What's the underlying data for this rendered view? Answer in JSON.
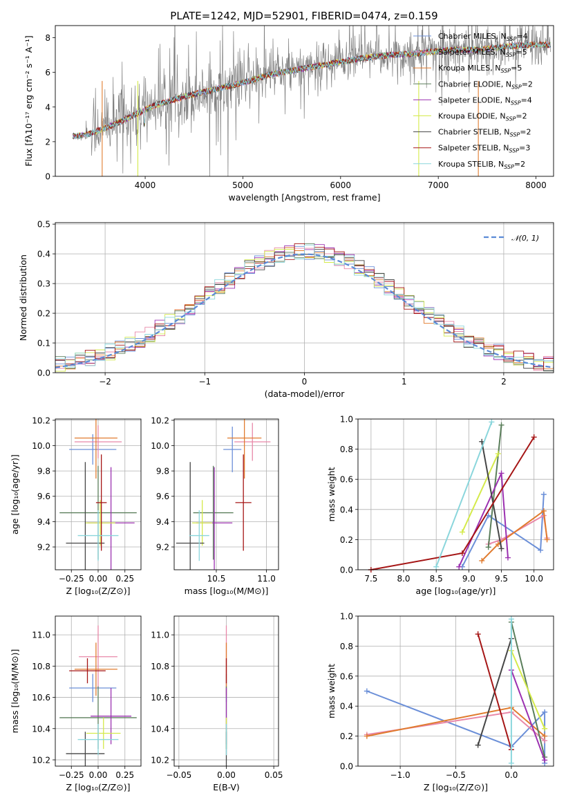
{
  "title": "PLATE=1242, MJD=52901, FIBERID=0474, z=0.159",
  "colors": {
    "Chabrier MILES": "#6b8fd8",
    "Salpeter MILES": "#e887a8",
    "Kroupa MILES": "#e07b2e",
    "Chabrier ELODIE": "#5a7e5a",
    "Salpeter ELODIE": "#9b30b0",
    "Kroupa ELODIE": "#d4ea4a",
    "Chabrier STELIB": "#454545",
    "Salpeter STELIB": "#a51515",
    "Kroupa STELIB": "#8ad6dc",
    "data": "#808080",
    "gaussian": "#5b8ad6",
    "grid": "#b0b0b0"
  },
  "chart_data": [
    {
      "id": "spectrum",
      "type": "line",
      "xlabel": "wavelength [Angstrom, rest frame]",
      "ylabel": "Flux [fλ10⁻¹⁷ erg cm⁻² s⁻¹ A⁻¹]",
      "xlim": [
        3080,
        8180
      ],
      "ylim": [
        0,
        8.7
      ],
      "xticks": [
        4000,
        5000,
        6000,
        7000,
        8000
      ],
      "yticks": [
        0,
        2,
        4,
        6,
        8
      ],
      "grid": false,
      "legend": "top-right",
      "legend_entries": [
        {
          "key": "Chabrier MILES",
          "label": "Chabrier MILES, N",
          "sub": "SSP",
          "tail": "=4"
        },
        {
          "key": "Salpeter MILES",
          "label": "Salpeter MILES, N",
          "sub": "SSP",
          "tail": "=5"
        },
        {
          "key": "Kroupa MILES",
          "label": "Kroupa MILES, N",
          "sub": "SSP",
          "tail": "=5"
        },
        {
          "key": "Chabrier ELODIE",
          "label": "Chabrier ELODIE, N",
          "sub": "SSP",
          "tail": "=2"
        },
        {
          "key": "Salpeter ELODIE",
          "label": "Salpeter ELODIE, N",
          "sub": "SSP",
          "tail": "=4"
        },
        {
          "key": "Kroupa ELODIE",
          "label": "Kroupa ELODIE, N",
          "sub": "SSP",
          "tail": "=2"
        },
        {
          "key": "Chabrier STELIB",
          "label": "Chabrier STELIB, N",
          "sub": "SSP",
          "tail": "=2"
        },
        {
          "key": "Salpeter STELIB",
          "label": "Salpeter STELIB, N",
          "sub": "SSP",
          "tail": "=3"
        },
        {
          "key": "Kroupa STELIB",
          "label": "Kroupa STELIB, N",
          "sub": "SSP",
          "tail": "=2"
        }
      ],
      "continuum": [
        [
          3250,
          2.3
        ],
        [
          3400,
          2.4
        ],
        [
          3600,
          2.8
        ],
        [
          3800,
          3.3
        ],
        [
          3950,
          3.7
        ],
        [
          4100,
          4.1
        ],
        [
          4400,
          4.6
        ],
        [
          4700,
          5.0
        ],
        [
          5000,
          5.4
        ],
        [
          5300,
          5.9
        ],
        [
          5600,
          6.2
        ],
        [
          5900,
          6.5
        ],
        [
          6200,
          6.8
        ],
        [
          6500,
          7.0
        ],
        [
          6800,
          7.1
        ],
        [
          7100,
          7.3
        ],
        [
          7400,
          7.3
        ],
        [
          7700,
          7.5
        ],
        [
          8000,
          7.6
        ],
        [
          8150,
          7.6
        ]
      ]
    },
    {
      "id": "residuals",
      "type": "histogram",
      "xlabel": "(data-model)/error",
      "ylabel": "Normed distribution",
      "xlim": [
        -2.5,
        2.5
      ],
      "ylim": [
        0,
        0.505
      ],
      "xticks": [
        -2,
        -1,
        0,
        1,
        2
      ],
      "yticks": [
        0,
        0.1,
        0.2,
        0.3,
        0.4,
        0.5
      ],
      "grid": true,
      "legend": "top-right",
      "gaussian_label": "𝒩(0, 1)",
      "bin_width": 0.1
    },
    {
      "id": "age-vs-Z",
      "type": "scatter",
      "xlabel": "Z [log₁₀(Z/Z⊙)]",
      "ylabel": "age  [log₁₀(age/yr)]",
      "xlim": [
        -0.4,
        0.4
      ],
      "ylim": [
        9.02,
        10.21
      ],
      "xticks": [
        -0.25,
        0.0,
        0.25
      ],
      "yticks": [
        9.2,
        9.4,
        9.6,
        9.8,
        10.0,
        10.2
      ],
      "grid": true,
      "points": [
        {
          "key": "Chabrier MILES",
          "x": -0.05,
          "xerr": 0.22,
          "y": 9.97,
          "yerr": 0.12
        },
        {
          "key": "Salpeter MILES",
          "x": 0.0,
          "xerr": 0.22,
          "y": 10.03,
          "yerr": 0.13
        },
        {
          "key": "Kroupa MILES",
          "x": -0.02,
          "xerr": 0.2,
          "y": 10.06,
          "yerr": 0.32
        },
        {
          "key": "Chabrier ELODIE",
          "x": 0.0,
          "xerr": 0.36,
          "y": 9.47,
          "yerr": 0.37
        },
        {
          "key": "Salpeter ELODIE",
          "x": 0.12,
          "xerr": 0.22,
          "y": 9.39,
          "yerr": 0.44
        },
        {
          "key": "Kroupa ELODIE",
          "x": 0.02,
          "xerr": 0.14,
          "y": 9.39,
          "yerr": 0.18
        },
        {
          "key": "Chabrier STELIB",
          "x": -0.12,
          "xerr": 0.18,
          "y": 9.23,
          "yerr": 0.64
        },
        {
          "key": "Salpeter STELIB",
          "x": 0.03,
          "xerr": 0.05,
          "y": 9.55,
          "yerr": 0.38
        },
        {
          "key": "Kroupa STELIB",
          "x": 0.0,
          "xerr": 0.19,
          "y": 9.29,
          "yerr": 0.2
        }
      ]
    },
    {
      "id": "age-vs-mass",
      "type": "scatter",
      "xlabel": "mass [log₁₀(M/M⊙)]",
      "ylabel": "",
      "xlim": [
        10.08,
        11.12
      ],
      "ylim": [
        9.02,
        10.21
      ],
      "xticks": [
        10.5,
        11.0
      ],
      "yticks": [
        9.2,
        9.4,
        9.6,
        9.8,
        10.0,
        10.2
      ],
      "grid": true,
      "points": [
        {
          "key": "Chabrier MILES",
          "x": 10.66,
          "xerr": 0.09,
          "y": 9.97,
          "yerr": 0.18
        },
        {
          "key": "Salpeter MILES",
          "x": 10.86,
          "xerr": 0.18,
          "y": 10.03,
          "yerr": 0.15
        },
        {
          "key": "Kroupa MILES",
          "x": 10.78,
          "xerr": 0.17,
          "y": 10.06,
          "yerr": 0.32
        },
        {
          "key": "Chabrier ELODIE",
          "x": 10.47,
          "xerr": 0.2,
          "y": 9.47,
          "yerr": 0.37
        },
        {
          "key": "Salpeter ELODIE",
          "x": 10.48,
          "xerr": 0.18,
          "y": 9.39,
          "yerr": 0.44
        },
        {
          "key": "Kroupa ELODIE",
          "x": 10.36,
          "xerr": 0.1,
          "y": 9.39,
          "yerr": 0.18
        },
        {
          "key": "Chabrier STELIB",
          "x": 10.24,
          "xerr": 0.14,
          "y": 9.23,
          "yerr": 0.64
        },
        {
          "key": "Salpeter STELIB",
          "x": 10.77,
          "xerr": 0.08,
          "y": 9.55,
          "yerr": 0.38
        },
        {
          "key": "Kroupa STELIB",
          "x": 10.33,
          "xerr": 0.1,
          "y": 9.29,
          "yerr": 0.2
        }
      ]
    },
    {
      "id": "weight-vs-age",
      "type": "line",
      "xlabel": "age  [log₁₀(age/yr)]",
      "ylabel": "mass weight",
      "xlim": [
        7.3,
        10.3
      ],
      "ylim": [
        0,
        1.0
      ],
      "xticks": [
        7.5,
        8.0,
        8.5,
        9.0,
        9.5,
        10.0
      ],
      "yticks": [
        0.0,
        0.2,
        0.4,
        0.6,
        0.8,
        1.0
      ],
      "grid": true,
      "series": [
        {
          "key": "Chabrier MILES",
          "x": [
            8.9,
            9.3,
            10.1,
            10.15
          ],
          "y": [
            0.02,
            0.36,
            0.13,
            0.5
          ]
        },
        {
          "key": "Salpeter MILES",
          "x": [
            9.3,
            9.5,
            10.15,
            10.2
          ],
          "y": [
            0.17,
            0.2,
            0.36,
            0.21
          ]
        },
        {
          "key": "Kroupa MILES",
          "x": [
            9.2,
            9.45,
            10.15,
            10.2
          ],
          "y": [
            0.06,
            0.17,
            0.39,
            0.2
          ]
        },
        {
          "key": "Chabrier ELODIE",
          "x": [
            9.3,
            9.5
          ],
          "y": [
            0.15,
            0.96
          ]
        },
        {
          "key": "Salpeter ELODIE",
          "x": [
            8.85,
            9.5,
            9.6
          ],
          "y": [
            0.02,
            0.64,
            0.08
          ]
        },
        {
          "key": "Kroupa ELODIE",
          "x": [
            8.9,
            9.45
          ],
          "y": [
            0.25,
            0.77
          ]
        },
        {
          "key": "Chabrier STELIB",
          "x": [
            9.2,
            9.5
          ],
          "y": [
            0.85,
            0.14
          ]
        },
        {
          "key": "Salpeter STELIB",
          "x": [
            7.5,
            8.9,
            10.0
          ],
          "y": [
            0.0,
            0.11,
            0.88
          ]
        },
        {
          "key": "Kroupa STELIB",
          "x": [
            8.5,
            9.35
          ],
          "y": [
            0.02,
            0.98
          ]
        }
      ]
    },
    {
      "id": "mass-vs-Z",
      "type": "scatter",
      "xlabel": "Z [log₁₀(Z/Z⊙)]",
      "ylabel": "mass [log₁₀(M/M⊙)]",
      "xlim": [
        -0.4,
        0.4
      ],
      "ylim": [
        10.16,
        11.12
      ],
      "xticks": [
        -0.25,
        0.0,
        0.25
      ],
      "yticks": [
        10.2,
        10.4,
        10.6,
        10.8,
        11.0
      ],
      "grid": true,
      "points": [
        {
          "key": "Chabrier MILES",
          "x": -0.05,
          "xerr": 0.22,
          "y": 10.66,
          "yerr": 0.09
        },
        {
          "key": "Salpeter MILES",
          "x": 0.0,
          "xerr": 0.18,
          "y": 10.86,
          "yerr": 0.2
        },
        {
          "key": "Kroupa MILES",
          "x": -0.02,
          "xerr": 0.2,
          "y": 10.78,
          "yerr": 0.17
        },
        {
          "key": "Chabrier ELODIE",
          "x": 0.0,
          "xerr": 0.36,
          "y": 10.47,
          "yerr": 0.2
        },
        {
          "key": "Salpeter ELODIE",
          "x": 0.12,
          "xerr": 0.19,
          "y": 10.48,
          "yerr": 0.18
        },
        {
          "key": "Kroupa ELODIE",
          "x": 0.05,
          "xerr": 0.16,
          "y": 10.37,
          "yerr": 0.1
        },
        {
          "key": "Chabrier STELIB",
          "x": -0.12,
          "xerr": 0.18,
          "y": 10.24,
          "yerr": 0.14
        },
        {
          "key": "Salpeter STELIB",
          "x": -0.1,
          "xerr": 0.17,
          "y": 10.77,
          "yerr": 0.08
        },
        {
          "key": "Kroupa STELIB",
          "x": 0.0,
          "xerr": 0.19,
          "y": 10.33,
          "yerr": 0.1
        }
      ]
    },
    {
      "id": "mass-vs-ebv",
      "type": "scatter",
      "xlabel": "E(B-V)",
      "ylabel": "",
      "xlim": [
        -0.055,
        0.055
      ],
      "ylim": [
        10.16,
        11.12
      ],
      "xticks": [
        -0.05,
        0.0,
        0.05
      ],
      "yticks": [
        10.2,
        10.4,
        10.6,
        10.8,
        11.0
      ],
      "grid": true,
      "points": [
        {
          "key": "Chabrier MILES",
          "x": 0.0,
          "xerr": 0,
          "y": 10.66,
          "yerr": 0.09
        },
        {
          "key": "Salpeter MILES",
          "x": 0.0,
          "xerr": 0,
          "y": 10.86,
          "yerr": 0.2
        },
        {
          "key": "Kroupa MILES",
          "x": 0.0,
          "xerr": 0,
          "y": 10.78,
          "yerr": 0.17
        },
        {
          "key": "Chabrier ELODIE",
          "x": 0.0,
          "xerr": 0,
          "y": 10.47,
          "yerr": 0.2
        },
        {
          "key": "Salpeter ELODIE",
          "x": 0.0,
          "xerr": 0,
          "y": 10.48,
          "yerr": 0.18
        },
        {
          "key": "Kroupa ELODIE",
          "x": 0.0,
          "xerr": 0,
          "y": 10.37,
          "yerr": 0.1
        },
        {
          "key": "Chabrier STELIB",
          "x": 0.0,
          "xerr": 0,
          "y": 10.24,
          "yerr": 0.14
        },
        {
          "key": "Salpeter STELIB",
          "x": 0.0,
          "xerr": 0,
          "y": 10.77,
          "yerr": 0.08
        },
        {
          "key": "Kroupa STELIB",
          "x": 0.0,
          "xerr": 0,
          "y": 10.33,
          "yerr": 0.1
        }
      ]
    },
    {
      "id": "weight-vs-Z",
      "type": "line",
      "xlabel": "Z [log₁₀(Z/Z⊙)]",
      "ylabel": "mass weight",
      "xlim": [
        -1.38,
        0.38
      ],
      "ylim": [
        0,
        1.0
      ],
      "xticks": [
        -1.0,
        -0.5,
        0.0
      ],
      "yticks": [
        0.0,
        0.2,
        0.4,
        0.6,
        0.8,
        1.0
      ],
      "grid": true,
      "series": [
        {
          "key": "Chabrier MILES",
          "x": [
            -1.3,
            0.0,
            0.3,
            0.3
          ],
          "y": [
            0.5,
            0.13,
            0.36,
            0.02
          ]
        },
        {
          "key": "Salpeter MILES",
          "x": [
            -1.3,
            0.0,
            0.3
          ],
          "y": [
            0.21,
            0.36,
            0.17
          ]
        },
        {
          "key": "Kroupa MILES",
          "x": [
            -1.3,
            0.0,
            0.3
          ],
          "y": [
            0.2,
            0.39,
            0.2
          ]
        },
        {
          "key": "Chabrier ELODIE",
          "x": [
            0.0,
            0.3
          ],
          "y": [
            0.96,
            0.06
          ]
        },
        {
          "key": "Salpeter ELODIE",
          "x": [
            0.0,
            0.3
          ],
          "y": [
            0.64,
            0.04
          ]
        },
        {
          "key": "Kroupa ELODIE",
          "x": [
            0.0,
            0.3
          ],
          "y": [
            0.77,
            0.25
          ]
        },
        {
          "key": "Chabrier STELIB",
          "x": [
            -0.3,
            0.0
          ],
          "y": [
            0.14,
            0.85
          ]
        },
        {
          "key": "Salpeter STELIB",
          "x": [
            -0.3,
            0.0
          ],
          "y": [
            0.88,
            0.11
          ]
        },
        {
          "key": "Kroupa STELIB",
          "x": [
            0.0,
            0.0
          ],
          "y": [
            0.02,
            0.98
          ]
        }
      ]
    }
  ]
}
